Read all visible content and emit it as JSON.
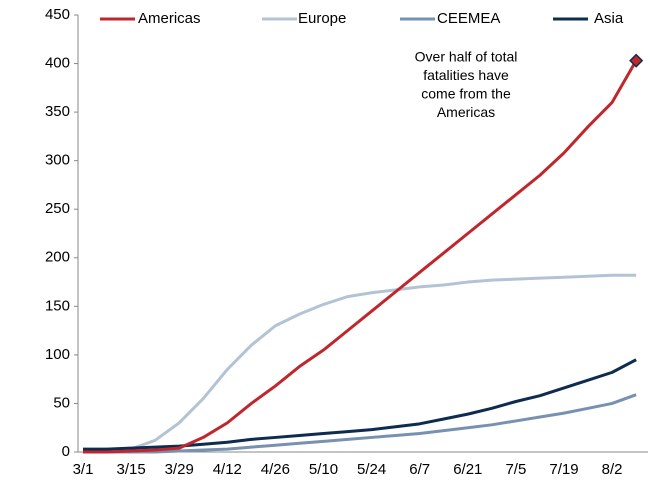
{
  "chart_data": {
    "type": "line",
    "categories": [
      "3/1",
      null,
      "3/15",
      null,
      "3/29",
      null,
      "4/12",
      null,
      "4/26",
      null,
      "5/10",
      null,
      "5/24",
      null,
      "6/7",
      null,
      "6/21",
      null,
      "7/5",
      null,
      "7/19",
      null,
      "8/2",
      null
    ],
    "series": [
      {
        "name": "Americas",
        "color": "#c0272d",
        "values": [
          0,
          0,
          1,
          2,
          4,
          15,
          30,
          50,
          68,
          88,
          105,
          125,
          145,
          165,
          185,
          205,
          225,
          245,
          265,
          285,
          308,
          335,
          360,
          403
        ]
      },
      {
        "name": "Europe",
        "color": "#b3c3d6",
        "values": [
          0,
          1,
          3,
          12,
          30,
          55,
          85,
          110,
          130,
          142,
          152,
          160,
          164,
          167,
          170,
          172,
          175,
          177,
          178,
          179,
          180,
          181,
          182,
          182
        ]
      },
      {
        "name": "CEEMEA",
        "color": "#7891b0",
        "values": [
          0,
          0,
          0,
          0,
          1,
          2,
          3,
          5,
          7,
          9,
          11,
          13,
          15,
          17,
          19,
          22,
          25,
          28,
          32,
          36,
          40,
          45,
          50,
          59
        ]
      },
      {
        "name": "Asia",
        "color": "#0d2c4f",
        "values": [
          3,
          3,
          4,
          5,
          6,
          8,
          10,
          13,
          15,
          17,
          19,
          21,
          23,
          26,
          29,
          34,
          39,
          45,
          52,
          58,
          66,
          74,
          82,
          95
        ]
      }
    ],
    "ylim": [
      0,
      450
    ],
    "yticks": [
      0,
      50,
      100,
      150,
      200,
      250,
      300,
      350,
      400,
      450
    ],
    "annotation": [
      "Over half of total",
      "fatalities have",
      "come from the",
      "Americas"
    ],
    "legend": "top",
    "grid": false
  }
}
